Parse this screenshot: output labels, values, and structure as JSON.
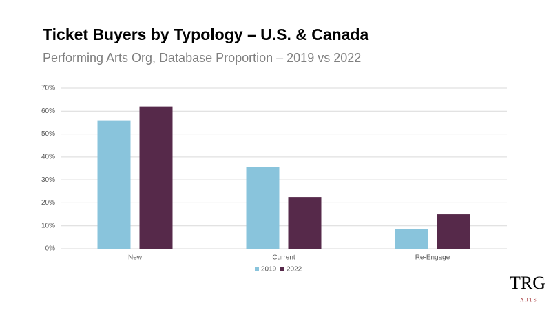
{
  "chart_data": {
    "type": "bar",
    "title": "Ticket Buyers by Typology – U.S. & Canada",
    "subtitle": "Performing Arts Org, Database Proportion – 2019 vs 2022",
    "categories": [
      "New",
      "Current",
      "Re-Engage"
    ],
    "series": [
      {
        "name": "2019",
        "color": "#89c4dc",
        "values": [
          56,
          35.5,
          8.5
        ]
      },
      {
        "name": "2022",
        "color": "#56294a",
        "values": [
          62,
          22.5,
          15
        ]
      }
    ],
    "ylim": [
      0,
      70
    ],
    "yticks": [
      {
        "value": 0,
        "label": "0%"
      },
      {
        "value": 10,
        "label": "10%"
      },
      {
        "value": 20,
        "label": "20%"
      },
      {
        "value": 30,
        "label": "30%"
      },
      {
        "value": 40,
        "label": "40%"
      },
      {
        "value": 50,
        "label": "50%"
      },
      {
        "value": 60,
        "label": "60%"
      },
      {
        "value": 70,
        "label": "70%"
      }
    ],
    "grid": true,
    "legend": "bottom"
  },
  "logo": {
    "mark": "TRG",
    "text": "ARTS"
  }
}
